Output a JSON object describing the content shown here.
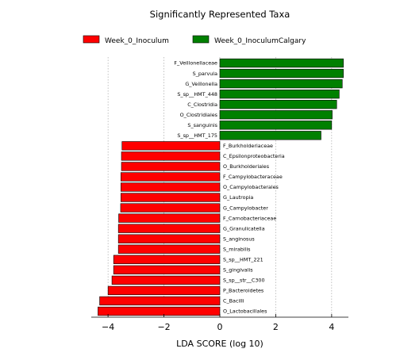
{
  "chart_data": {
    "type": "bar",
    "orientation": "horizontal",
    "title": "Significantly Represented Taxa",
    "xlabel": "LDA SCORE (log 10)",
    "xlim": [
      -4.6,
      4.6
    ],
    "xticks": [
      -4,
      -2,
      0,
      2,
      4
    ],
    "xtick_labels": [
      "−4",
      "−2",
      "0",
      "2",
      "4"
    ],
    "grid": "vertical dotted",
    "legend_position": "top",
    "colors": {
      "Week_0_Inoculum": "#ff0000",
      "Week_0_InoculumCalgary": "#008000"
    },
    "series": [
      {
        "name": "Week_0_Inoculum",
        "color": "#ff0000"
      },
      {
        "name": "Week_0_InoculumCalgary",
        "color": "#008000"
      }
    ],
    "bars": [
      {
        "label": "F_Veillonellaceae",
        "value": 4.42,
        "group": "Week_0_InoculumCalgary"
      },
      {
        "label": "S_parvula",
        "value": 4.42,
        "group": "Week_0_InoculumCalgary"
      },
      {
        "label": "G_Veillonella",
        "value": 4.38,
        "group": "Week_0_InoculumCalgary"
      },
      {
        "label": "S_sp__HMT_448",
        "value": 4.27,
        "group": "Week_0_InoculumCalgary"
      },
      {
        "label": "C_Clostridia",
        "value": 4.18,
        "group": "Week_0_InoculumCalgary"
      },
      {
        "label": "O_Clostridiales",
        "value": 4.02,
        "group": "Week_0_InoculumCalgary"
      },
      {
        "label": "S_sanguinis",
        "value": 4.0,
        "group": "Week_0_InoculumCalgary"
      },
      {
        "label": "S_sp__HMT_175",
        "value": 3.62,
        "group": "Week_0_InoculumCalgary"
      },
      {
        "label": "F_Burkholderiaceae",
        "value": -3.5,
        "group": "Week_0_Inoculum"
      },
      {
        "label": "C_Epsilonproteobacteria",
        "value": -3.52,
        "group": "Week_0_Inoculum"
      },
      {
        "label": "O_Burkholderiales",
        "value": -3.52,
        "group": "Week_0_Inoculum"
      },
      {
        "label": "F_Campylobacteraceae",
        "value": -3.54,
        "group": "Week_0_Inoculum"
      },
      {
        "label": "O_Campylobacterales",
        "value": -3.54,
        "group": "Week_0_Inoculum"
      },
      {
        "label": "G_Lautropia",
        "value": -3.54,
        "group": "Week_0_Inoculum"
      },
      {
        "label": "G_Campylobacter",
        "value": -3.55,
        "group": "Week_0_Inoculum"
      },
      {
        "label": "F_Carnobacteriaceae",
        "value": -3.62,
        "group": "Week_0_Inoculum"
      },
      {
        "label": "G_Granulicatella",
        "value": -3.63,
        "group": "Week_0_Inoculum"
      },
      {
        "label": "S_anginosus",
        "value": -3.63,
        "group": "Week_0_Inoculum"
      },
      {
        "label": "S_mirabilis",
        "value": -3.63,
        "group": "Week_0_Inoculum"
      },
      {
        "label": "S_sp__HMT_221",
        "value": -3.8,
        "group": "Week_0_Inoculum"
      },
      {
        "label": "S_gingivalis",
        "value": -3.8,
        "group": "Week_0_Inoculum"
      },
      {
        "label": "S_sp__str__C300",
        "value": -3.86,
        "group": "Week_0_Inoculum"
      },
      {
        "label": "P_Bacteroidetes",
        "value": -4.0,
        "group": "Week_0_Inoculum"
      },
      {
        "label": "C_Bacilli",
        "value": -4.3,
        "group": "Week_0_Inoculum"
      },
      {
        "label": "O_Lactobacillales",
        "value": -4.36,
        "group": "Week_0_Inoculum"
      }
    ]
  }
}
